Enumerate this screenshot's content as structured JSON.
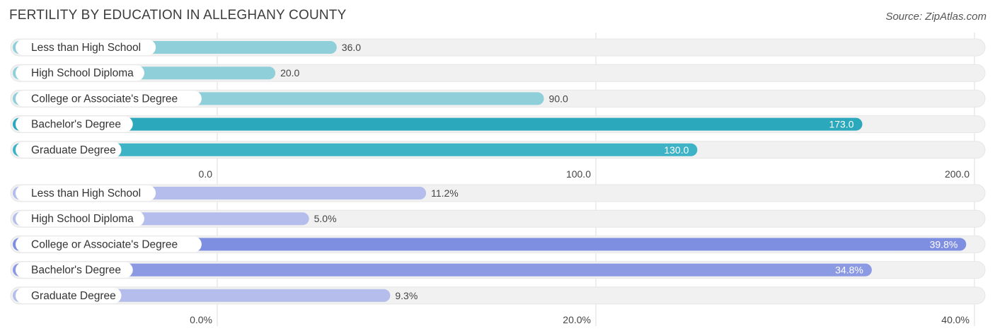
{
  "title": "FERTILITY BY EDUCATION IN ALLEGHANY COUNTY",
  "source": "Source: ZipAtlas.com",
  "chart_data": [
    {
      "type": "bar",
      "orientation": "horizontal",
      "categories": [
        "Less than High School",
        "High School Diploma",
        "College or Associate's Degree",
        "Bachelor's Degree",
        "Graduate Degree"
      ],
      "values": [
        36.0,
        20.0,
        90.0,
        173.0,
        130.0
      ],
      "value_labels": [
        "36.0",
        "20.0",
        "90.0",
        "173.0",
        "130.0"
      ],
      "x_ticks": [
        "0.0",
        "100.0",
        "200.0"
      ],
      "xlim": [
        -49,
        205
      ],
      "grid": true,
      "colors": {
        "bar_light": "#8ecfd9",
        "bar_highlight": "#2ba8bc",
        "bar_mid": "#3eb3c5",
        "track": "#f1f1f1"
      }
    },
    {
      "type": "bar",
      "orientation": "horizontal",
      "categories": [
        "Less than High School",
        "High School Diploma",
        "College or Associate's Degree",
        "Bachelor's Degree",
        "Graduate Degree"
      ],
      "values": [
        11.2,
        5.0,
        39.8,
        34.8,
        9.3
      ],
      "value_labels": [
        "11.2%",
        "5.0%",
        "39.8%",
        "34.8%",
        "9.3%"
      ],
      "x_ticks": [
        "0.0%",
        "20.0%",
        "40.0%"
      ],
      "xlim": [
        -10.8,
        40.8
      ],
      "grid": true,
      "colors": {
        "bar_light": "#b4bdeb",
        "bar_highlight": "#7e8ee0",
        "bar_mid": "#8c9ae4",
        "track": "#f1f1f1"
      }
    }
  ]
}
